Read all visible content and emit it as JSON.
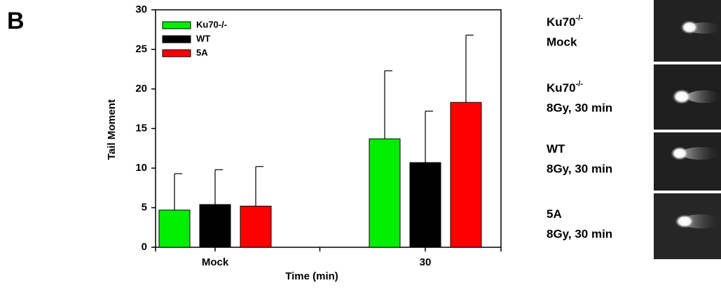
{
  "panel_label": "B",
  "chart_data": {
    "type": "bar",
    "x_label": "Time (min)",
    "y_label": "Tail Moment",
    "categories": [
      "Mock",
      "30"
    ],
    "series": [
      {
        "name": "Ku70-/-",
        "color": "#00ee00",
        "values": [
          4.7,
          13.7
        ],
        "errors": [
          4.6,
          8.6
        ]
      },
      {
        "name": "WT",
        "color": "#000000",
        "values": [
          5.4,
          10.7
        ],
        "errors": [
          4.4,
          6.5
        ]
      },
      {
        "name": "5A",
        "color": "#ff0000",
        "values": [
          5.2,
          18.3
        ],
        "errors": [
          5.0,
          8.5
        ]
      }
    ],
    "ylim": [
      0,
      30
    ],
    "yticks": [
      0,
      5,
      10,
      15,
      20,
      25,
      30
    ],
    "legend": "upper left"
  },
  "comet_images": [
    {
      "label": "Ku70",
      "superscript": "-/-",
      "condition": "Mock"
    },
    {
      "label": "Ku70",
      "superscript": "-/-",
      "condition": "8Gy, 30 min"
    },
    {
      "label": "WT",
      "condition": "8Gy, 30 min"
    },
    {
      "label": "5A",
      "condition": "8Gy, 30 min"
    }
  ]
}
